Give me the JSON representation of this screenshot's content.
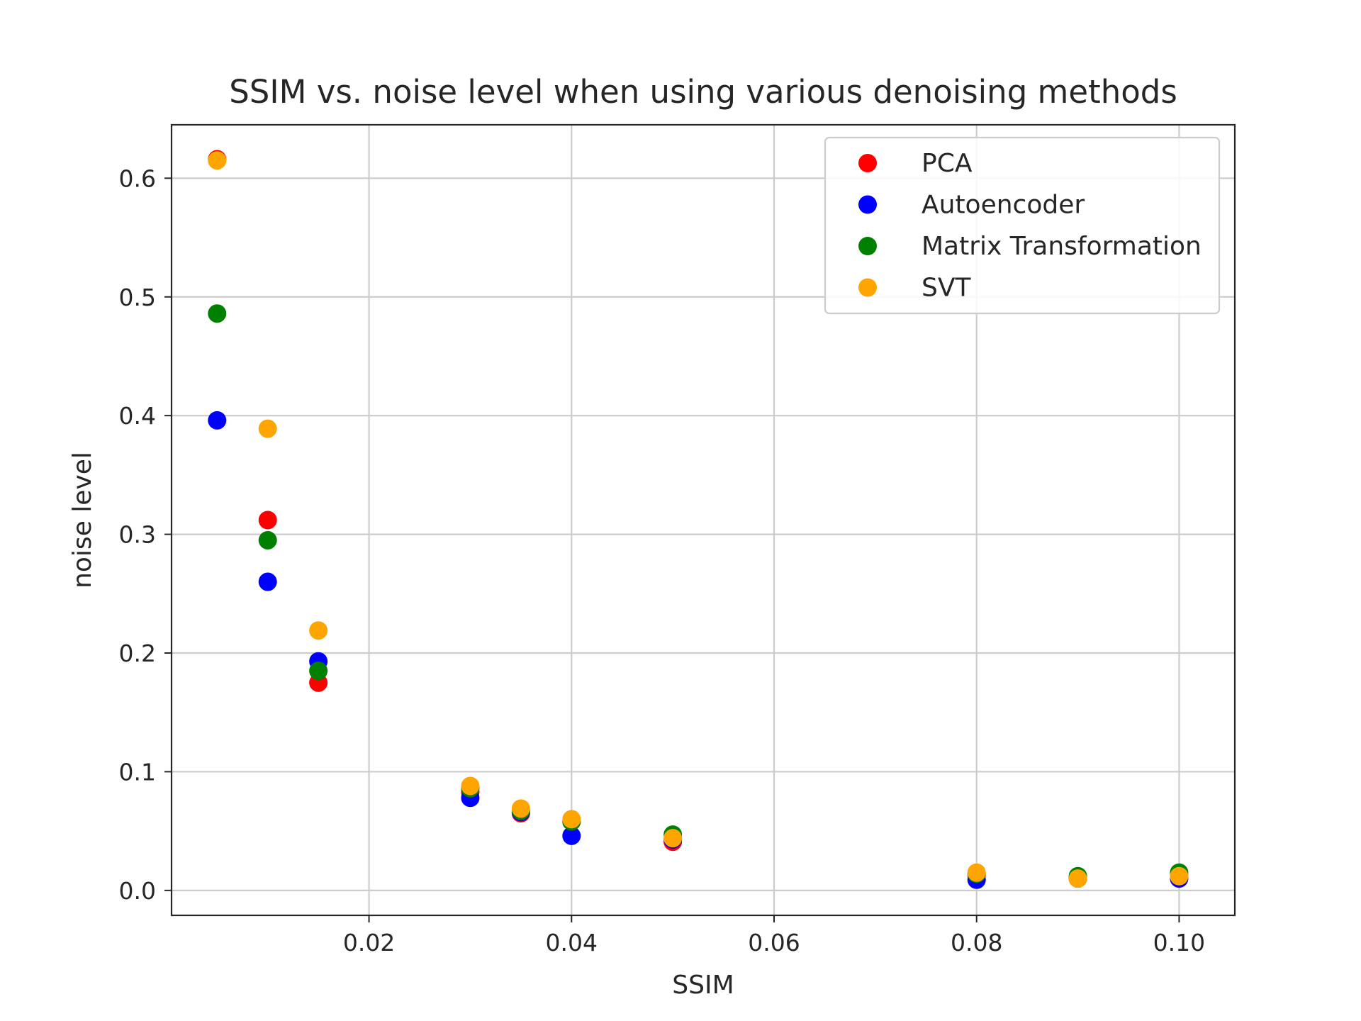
{
  "chart_data": {
    "type": "scatter",
    "title": "SSIM vs. noise level when using various denoising methods",
    "xlabel": "SSIM",
    "ylabel": "noise level",
    "xlim": [
      0.0005,
      0.1055
    ],
    "ylim": [
      -0.021,
      0.645
    ],
    "xticks": [
      "0.02",
      "0.04",
      "0.06",
      "0.08",
      "0.10"
    ],
    "yticks": [
      "0.0",
      "0.1",
      "0.2",
      "0.3",
      "0.4",
      "0.5",
      "0.6"
    ],
    "grid": true,
    "legend_position": "top-right",
    "series": [
      {
        "name": "PCA",
        "color": "#ff0000",
        "x": [
          0.005,
          0.01,
          0.015,
          0.03,
          0.035,
          0.04,
          0.05,
          0.08,
          0.09,
          0.1
        ],
        "y": [
          0.616,
          0.312,
          0.175,
          0.083,
          0.065,
          0.058,
          0.041,
          0.013,
          0.011,
          0.012
        ]
      },
      {
        "name": "Autoencoder",
        "color": "#0000ff",
        "x": [
          0.005,
          0.01,
          0.015,
          0.03,
          0.035,
          0.04,
          0.05,
          0.08,
          0.09,
          0.1
        ],
        "y": [
          0.396,
          0.26,
          0.193,
          0.078,
          0.066,
          0.046,
          0.043,
          0.009,
          0.01,
          0.01
        ]
      },
      {
        "name": "Matrix Transformation",
        "color": "#008000",
        "x": [
          0.005,
          0.01,
          0.015,
          0.03,
          0.035,
          0.04,
          0.05,
          0.08,
          0.09,
          0.1
        ],
        "y": [
          0.486,
          0.295,
          0.185,
          0.086,
          0.067,
          0.058,
          0.047,
          0.014,
          0.012,
          0.015
        ]
      },
      {
        "name": "SVT",
        "color": "#ffa500",
        "x": [
          0.005,
          0.01,
          0.015,
          0.03,
          0.035,
          0.04,
          0.05,
          0.08,
          0.09,
          0.1
        ],
        "y": [
          0.615,
          0.389,
          0.219,
          0.088,
          0.069,
          0.06,
          0.044,
          0.015,
          0.01,
          0.012
        ]
      }
    ]
  }
}
